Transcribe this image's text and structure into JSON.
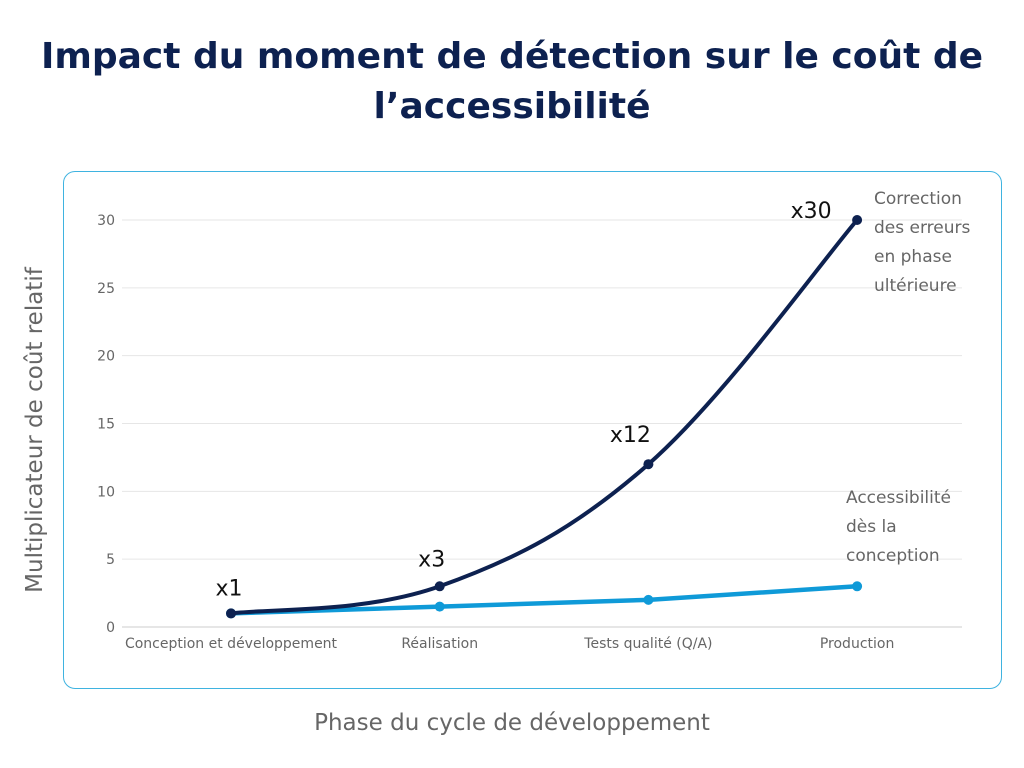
{
  "chart_data": {
    "type": "line",
    "title": "Impact du moment de détection sur le coût de l’accessibilité",
    "xlabel": "Phase du cycle de développement",
    "ylabel": "Multiplicateur de coût relatif",
    "categories": [
      "Conception et développement",
      "Réalisation",
      "Tests qualité (Q/A)",
      "Production"
    ],
    "ylim": [
      0,
      30
    ],
    "yticks": [
      0,
      5,
      10,
      15,
      20,
      25,
      30
    ],
    "grid": true,
    "series": [
      {
        "name": "Correction des erreurs en phase ultérieure",
        "label_lines": [
          "Correction",
          "des erreurs",
          "en phase",
          "ultérieure"
        ],
        "values": [
          1,
          3,
          12,
          30
        ],
        "data_labels": [
          "x1",
          "x3",
          "x12",
          "x30"
        ],
        "color": "#0d2150",
        "smooth": true
      },
      {
        "name": "Accessibilité dès la conception",
        "label_lines": [
          "Accessibilité",
          "dès la",
          "conception"
        ],
        "values": [
          1,
          1.5,
          2,
          3
        ],
        "color": "#0f9ad8"
      }
    ]
  }
}
